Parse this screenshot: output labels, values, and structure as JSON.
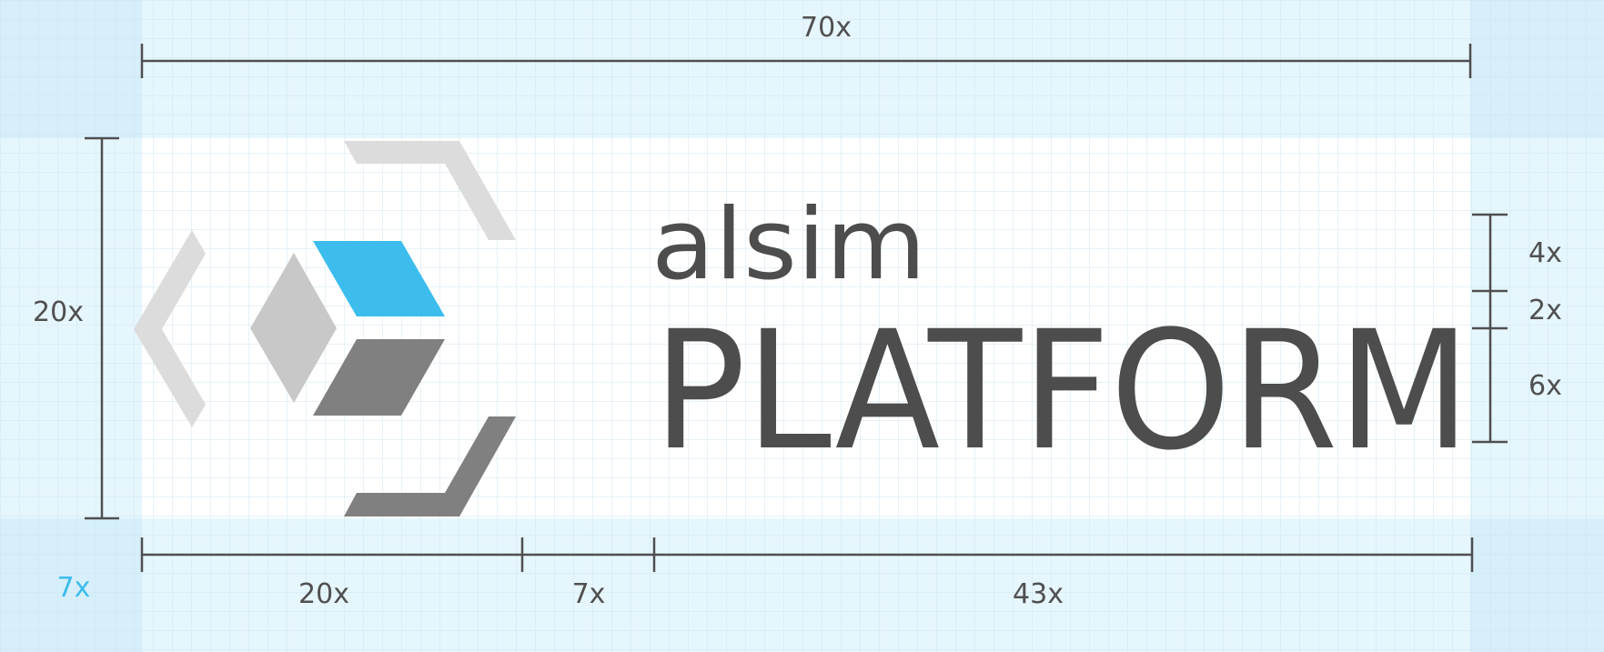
{
  "colors": {
    "margin_band": "#e6f6fd",
    "margin_corner": "#d6effb",
    "grid_line": "#cfe6f2",
    "grid_line_white": "#e2e9ee",
    "dimension_line": "#4f4f4f",
    "dimension_text": "#505050",
    "accent": "#3cbded",
    "shape_light": "#dcdcdc",
    "shape_mid": "#c8c8c8",
    "shape_dark": "#808080",
    "wordmark": "#4d4d4d"
  },
  "icons": {
    "left_chevron": "left-chevron-icon",
    "cube": "isometric-cube-icon",
    "top_bracket": "top-bracket-icon",
    "bottom_bracket": "bottom-bracket-icon"
  },
  "logo": {
    "word_small": "alsim",
    "word_large": "PLATFORM"
  },
  "dimensions": {
    "top_total": "70x",
    "left_height": "20x",
    "margin": "7x",
    "bottom_icon": "20x",
    "bottom_gap": "7x",
    "bottom_text": "43x",
    "right_upper": "4x",
    "right_middle": "2x",
    "right_lower": "6x"
  }
}
